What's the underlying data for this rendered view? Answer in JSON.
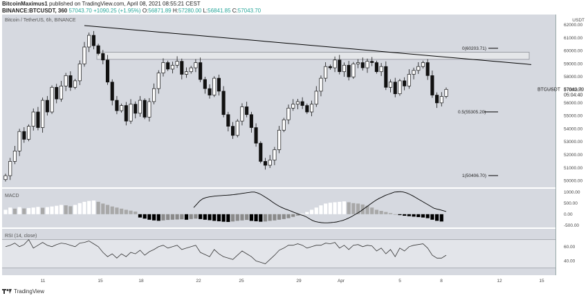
{
  "header": {
    "author": "BitcoinMaximus1",
    "published_text": "published on TradingView.com, April 08, 2021 08:55:21 CEST",
    "symbol_line": "BINANCE:BTCUSDT, 360",
    "last": "57043.70",
    "change": "+1090.25 (+1.95%)",
    "o_label": "O:",
    "o": "56871.89",
    "h_label": "H:",
    "h": "57280.00",
    "l_label": "L:",
    "l": "56841.85",
    "c_label": "C:",
    "c": "57043.70"
  },
  "pane_title": "Bitcoin / TetherUS, 6h, BINANCE",
  "currency": "USDT",
  "macd_label": "MACD",
  "rsi_label": "RSI (14, close)",
  "price_tag": {
    "symbol": "BTCUSDT",
    "price": "57043.70",
    "countdown": "05:04:40"
  },
  "footer": {
    "brand": "TradingView"
  },
  "colors": {
    "panel_bg": "#d6d9e0",
    "candle": "#111111",
    "line": "#000000",
    "hist_light": "#ffffff",
    "hist_dark": "#000000",
    "hist_mid": "#8a8a8a"
  },
  "chart_data": {
    "type": "candlestick",
    "y_ticks": [
      "62000.00",
      "61000.00",
      "60000.00",
      "59000.00",
      "58000.00",
      "57000.00",
      "56000.00",
      "55000.00",
      "54000.00",
      "53000.00",
      "52000.00",
      "51000.00",
      "50000.00"
    ],
    "x_ticks": [
      "11",
      "15",
      "18",
      "22",
      "25",
      "29",
      "Apr",
      "5",
      "8",
      "12",
      "15"
    ],
    "ylim": [
      49500,
      62800
    ],
    "fib_levels": [
      {
        "label": "0(60203.71)",
        "value": 60203.71
      },
      {
        "label": "0.5(55305.20)",
        "value": 55305.2
      },
      {
        "label": "1(50406.70)",
        "value": 50406.7
      }
    ],
    "resistance_zone": [
      59350,
      59900
    ],
    "descending_trendline": {
      "start": 61950,
      "end": 58950
    },
    "closes": [
      50400,
      51500,
      52300,
      53800,
      53200,
      54200,
      55300,
      54100,
      56200,
      55300,
      57200,
      56300,
      57300,
      58100,
      57200,
      57700,
      59000,
      60300,
      61200,
      60400,
      59800,
      59300,
      57600,
      56200,
      55400,
      55800,
      54600,
      55900,
      55200,
      56200,
      54900,
      56100,
      57100,
      58300,
      59100,
      58600,
      58900,
      59200,
      58200,
      58400,
      58700,
      59100,
      57800,
      57100,
      56600,
      57900,
      56900,
      55100,
      54200,
      53500,
      54600,
      55700,
      55100,
      54100,
      52900,
      51500,
      51200,
      51600,
      52400,
      53900,
      54700,
      55600,
      55900,
      56100,
      55800,
      55300,
      55900,
      56900,
      57900,
      58800,
      58700,
      59300,
      58400,
      58900,
      58000,
      59000,
      59100,
      58700,
      59200,
      59100,
      58400,
      58800,
      57200,
      57600,
      56700,
      57700,
      57300,
      58200,
      58500,
      58800,
      59100,
      58100,
      56600,
      56000,
      56500,
      57040
    ],
    "macd": {
      "macd_ylim": [
        -600,
        1150
      ],
      "macd_ticks": [
        "1000.00",
        "500.00",
        "0.00",
        "-500.00"
      ],
      "signal": [
        300,
        450,
        600,
        700,
        750,
        780,
        800,
        820,
        830,
        840,
        850,
        860,
        870,
        880,
        900,
        920,
        940,
        960,
        980,
        1000,
        1000,
        960,
        900,
        820,
        730,
        640,
        540,
        450,
        370,
        300,
        240,
        190,
        140,
        80,
        30,
        -20,
        -60,
        -120,
        -200,
        -280,
        -330,
        -360,
        -380,
        -390,
        -390,
        -380,
        -370,
        -350,
        -320,
        -280,
        -230,
        -170,
        -100,
        -20,
        60,
        150,
        250,
        350,
        450,
        550,
        640,
        720,
        780,
        850,
        900,
        950,
        1000,
        1010,
        1020,
        1000,
        960,
        900,
        830,
        750,
        670,
        590,
        510,
        430,
        350,
        270,
        230,
        200,
        160,
        120
      ],
      "hist": [
        200,
        300,
        250,
        320,
        260,
        280,
        300,
        330,
        290,
        320,
        350,
        380,
        420,
        400,
        360,
        420,
        500,
        560,
        600,
        620,
        560,
        480,
        420,
        350,
        300,
        250,
        200,
        160,
        120,
        -150,
        -200,
        -250,
        -280,
        -300,
        -280,
        -260,
        -250,
        -240,
        -230,
        -250,
        -220,
        -200,
        -220,
        -250,
        -270,
        -300,
        -320,
        -340,
        -350,
        -330,
        -300,
        -280,
        -260,
        -300,
        -320,
        -340,
        -330,
        -300,
        -280,
        -250,
        -220,
        -180,
        -120,
        -60,
        20,
        100,
        200,
        300,
        400,
        480,
        520,
        540,
        560,
        580,
        540,
        500,
        480,
        440,
        380,
        300,
        200,
        150,
        100,
        50,
        0,
        -40,
        -70,
        -90,
        -110,
        -130,
        -150,
        -180,
        -250,
        -300,
        -330
      ]
    },
    "rsi": {
      "rsi_ylim": [
        20,
        85
      ],
      "rsi_ticks": [
        "60.00",
        "40.00"
      ],
      "values": [
        60,
        62,
        65,
        60,
        63,
        70,
        58,
        62,
        66,
        62,
        60,
        63,
        65,
        64,
        62,
        60,
        65,
        66,
        68,
        64,
        60,
        52,
        46,
        50,
        44,
        50,
        46,
        52,
        50,
        55,
        48,
        53,
        56,
        60,
        62,
        58,
        60,
        62,
        56,
        58,
        60,
        62,
        52,
        49,
        46,
        56,
        50,
        46,
        44,
        42,
        48,
        54,
        50,
        46,
        40,
        38,
        36,
        42,
        48,
        55,
        58,
        62,
        62,
        64,
        62,
        58,
        60,
        62,
        62,
        65,
        64,
        66,
        58,
        62,
        56,
        62,
        63,
        60,
        62,
        61,
        54,
        58,
        50,
        56,
        46,
        58,
        54,
        60,
        62,
        63,
        64,
        58,
        48,
        44,
        44,
        48
      ]
    }
  }
}
